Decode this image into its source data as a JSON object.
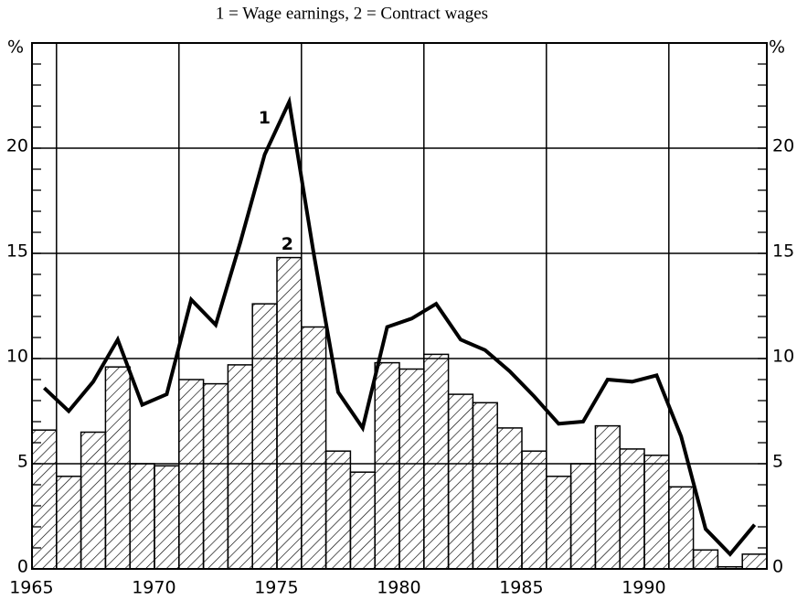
{
  "chart_data": {
    "type": "bar_line",
    "title": "1 = Wage earnings, 2 = Contract wages",
    "y_unit_left": "%",
    "y_unit_right": "%",
    "x": [
      1965,
      1966,
      1967,
      1968,
      1969,
      1970,
      1971,
      1972,
      1973,
      1974,
      1975,
      1976,
      1977,
      1978,
      1979,
      1980,
      1981,
      1982,
      1983,
      1984,
      1985,
      1986,
      1987,
      1988,
      1989,
      1990,
      1991,
      1992,
      1993,
      1994
    ],
    "series": [
      {
        "name": "Wage earnings",
        "label": "1",
        "kind": "line",
        "color": "#000000",
        "values": [
          8.6,
          7.5,
          8.9,
          10.9,
          7.8,
          8.3,
          12.8,
          11.6,
          15.5,
          19.7,
          22.2,
          15.0,
          8.4,
          6.7,
          11.5,
          11.9,
          12.6,
          10.9,
          10.4,
          9.4,
          8.2,
          6.9,
          7.0,
          9.0,
          8.9,
          9.2,
          6.3,
          1.9,
          0.7,
          2.1
        ]
      },
      {
        "name": "Contract wages",
        "label": "2",
        "kind": "bar",
        "color": "#000000",
        "values": [
          6.6,
          4.4,
          6.5,
          9.6,
          5.0,
          4.9,
          9.0,
          8.8,
          9.7,
          12.6,
          14.8,
          11.5,
          5.6,
          4.6,
          9.8,
          9.5,
          10.2,
          8.3,
          7.9,
          6.7,
          5.6,
          4.4,
          5.0,
          6.8,
          5.7,
          5.4,
          3.9,
          0.9,
          0.1,
          0.7
        ]
      }
    ],
    "xlim": [
      1964.5,
      1994.5
    ],
    "xticks": [
      1965,
      1970,
      1975,
      1980,
      1985,
      1990
    ],
    "ylim": [
      0,
      25
    ],
    "yticks": [
      0,
      5,
      10,
      15,
      20
    ],
    "grid": true
  }
}
